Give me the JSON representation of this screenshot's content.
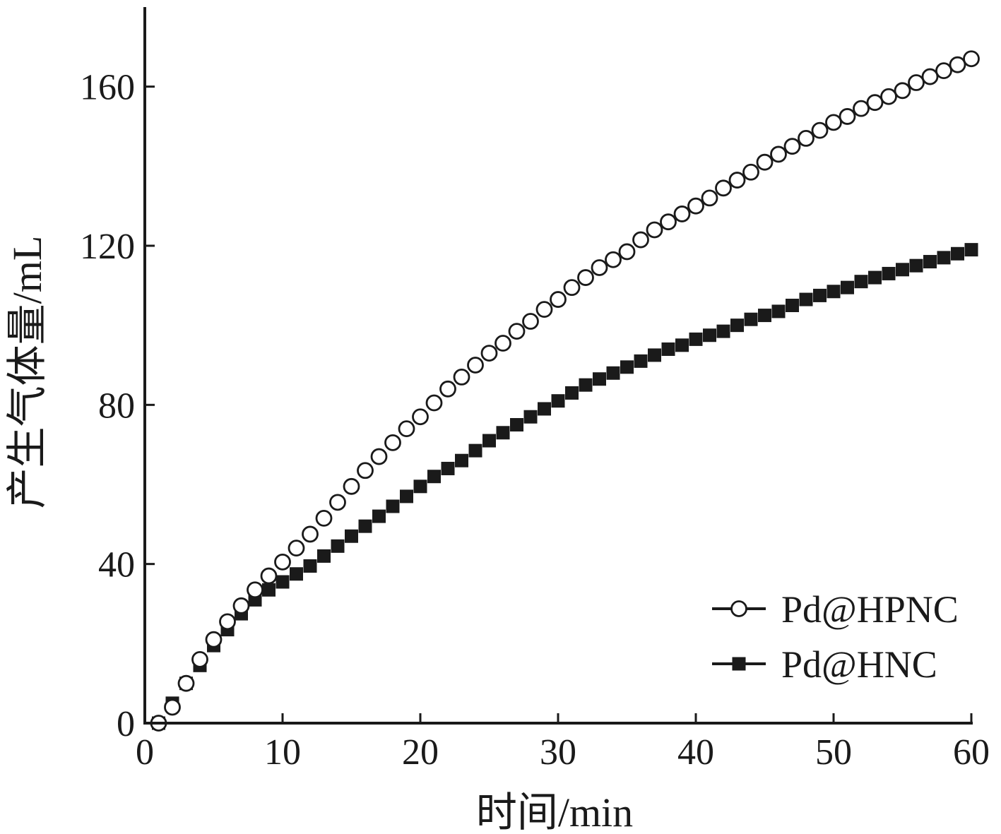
{
  "chart_data": {
    "type": "scatter",
    "title": "",
    "xlabel": "时间/min",
    "ylabel": "产生气体量/mL",
    "xlim": [
      0,
      60
    ],
    "ylim": [
      0,
      180
    ],
    "xticks": [
      0,
      10,
      20,
      30,
      40,
      50,
      60
    ],
    "yticks": [
      0,
      40,
      80,
      120,
      160
    ],
    "grid": false,
    "legend_position": "bottom-right",
    "x": [
      1,
      2,
      3,
      4,
      5,
      6,
      7,
      8,
      9,
      10,
      11,
      12,
      13,
      14,
      15,
      16,
      17,
      18,
      19,
      20,
      21,
      22,
      23,
      24,
      25,
      26,
      27,
      28,
      29,
      30,
      31,
      32,
      33,
      34,
      35,
      36,
      37,
      38,
      39,
      40,
      41,
      42,
      43,
      44,
      45,
      46,
      47,
      48,
      49,
      50,
      51,
      52,
      53,
      54,
      55,
      56,
      57,
      58,
      59,
      60
    ],
    "series": [
      {
        "name": "Pd@HPNC",
        "marker": "open-circle",
        "color": "#1a1a1a",
        "values": [
          0,
          4,
          10,
          16,
          21,
          25.5,
          29.5,
          33.5,
          37,
          40.5,
          44,
          47.5,
          51.5,
          55.5,
          59.5,
          63.5,
          67,
          70.5,
          74,
          77,
          80.5,
          84,
          87,
          90,
          93,
          95.5,
          98.5,
          101,
          104,
          106.5,
          109.5,
          112,
          114.5,
          116.5,
          118.5,
          121.5,
          124,
          126,
          128,
          130,
          132,
          134.5,
          136.5,
          138.5,
          141,
          143,
          145,
          147,
          149,
          151,
          152.5,
          154.5,
          156,
          157.5,
          159,
          161,
          162.5,
          164,
          165.5,
          167
        ]
      },
      {
        "name": "Pd@HNC",
        "marker": "filled-square",
        "color": "#1a1a1a",
        "values": [
          0,
          5,
          10,
          14.5,
          19.5,
          23.5,
          27.5,
          31,
          33.5,
          35.5,
          37.5,
          39.5,
          42,
          44.5,
          47,
          49.5,
          52,
          54.5,
          57,
          59.5,
          62,
          64,
          66,
          68.5,
          71,
          73,
          75,
          77,
          79,
          81,
          83,
          85,
          86.5,
          88,
          89.5,
          91,
          92.5,
          94,
          95,
          96.5,
          97.5,
          98.5,
          100,
          101.5,
          102.5,
          103.5,
          105,
          106.5,
          107.5,
          108.5,
          109.5,
          111,
          112,
          113,
          114,
          115,
          116,
          117,
          118,
          119
        ]
      }
    ]
  }
}
